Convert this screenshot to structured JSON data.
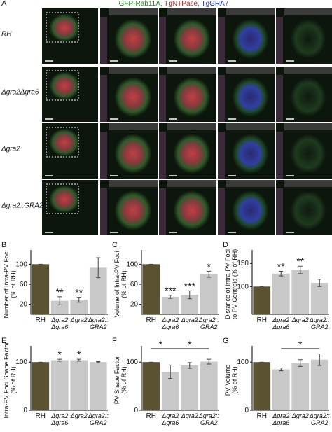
{
  "header": {
    "panel": "A",
    "legend": [
      {
        "text": "GFP-Rab11A,",
        "color": "#1a8a1a"
      },
      {
        "text": " TgNTPase,",
        "color": "#d02020"
      },
      {
        "text": " TgGRA7",
        "color": "#2030c0"
      }
    ]
  },
  "rows": [
    "RH",
    "Δgra2Δgra6",
    "Δgra2",
    "Δgra2::GRA2"
  ],
  "chart_data": [
    {
      "type": "bar",
      "panel": "B",
      "ylabel": "Number of Intra-PV Foci\n(% of RH)",
      "categories": [
        "RH",
        "Δgra2\nΔgra6",
        "Δgra2",
        "Δgra2::\nGRA2"
      ],
      "values": [
        100,
        27,
        29,
        93
      ],
      "errors": [
        0,
        8,
        5,
        20
      ],
      "colors": [
        "#5a5230",
        "#c8c8c8",
        "#c8c8c8",
        "#c8c8c8"
      ],
      "sig": [
        null,
        "**",
        "**",
        null
      ],
      "ylim": [
        0,
        120
      ],
      "yticks": [
        20,
        60,
        100
      ]
    },
    {
      "type": "bar",
      "panel": "C",
      "ylabel": "Volume of Intra-PV Foci\n(% of RH)",
      "categories": [
        "RH",
        "Δgra2\nΔgra6",
        "Δgra2",
        "Δgra2::\nGRA2"
      ],
      "values": [
        100,
        35,
        39,
        80
      ],
      "errors": [
        0,
        3,
        8,
        6
      ],
      "colors": [
        "#5a5230",
        "#c8c8c8",
        "#c8c8c8",
        "#c8c8c8"
      ],
      "sig": [
        null,
        "***",
        "***",
        "*"
      ],
      "ylim": [
        0,
        120
      ],
      "yticks": [
        20,
        60,
        100
      ]
    },
    {
      "type": "bar",
      "panel": "D",
      "ylabel": "Distance of Intra-PV Foci\nto PV Centroid (% of RH)",
      "categories": [
        "RH",
        "Δgra2\nΔgra6",
        "Δgra2",
        "Δgra2::\nGRA2"
      ],
      "values": [
        100,
        128,
        136,
        108
      ],
      "errors": [
        0,
        5,
        8,
        8
      ],
      "colors": [
        "#5a5230",
        "#c8c8c8",
        "#c8c8c8",
        "#c8c8c8"
      ],
      "sig": [
        null,
        "**",
        "**",
        null
      ],
      "ylim": [
        40,
        170
      ],
      "yticks": [
        100,
        150
      ]
    },
    {
      "type": "bar",
      "panel": "E",
      "ylabel": "Intra-PV Foci Shape Factor\n(% of RH)",
      "categories": [
        "RH",
        "Δgra2\nΔgra6",
        "Δgra2",
        "Δgra2::\nGRA2"
      ],
      "values": [
        100,
        104,
        104,
        100
      ],
      "errors": [
        0,
        2,
        2,
        1
      ],
      "colors": [
        "#5a5230",
        "#c8c8c8",
        "#c8c8c8",
        "#c8c8c8"
      ],
      "sig": [
        null,
        "*",
        "*",
        null
      ],
      "ylim": [
        0,
        125
      ],
      "yticks": [
        0,
        100
      ]
    },
    {
      "type": "bar",
      "panel": "F",
      "ylabel": "PV Shape Factor\n(% of RH)",
      "categories": [
        "RH",
        "Δgra2\nΔgra6",
        "Δgra2",
        "Δgra2::\nGRA2"
      ],
      "values": [
        100,
        80,
        93,
        101
      ],
      "errors": [
        0,
        14,
        6,
        5
      ],
      "colors": [
        "#5a5230",
        "#c8c8c8",
        "#c8c8c8",
        "#c8c8c8"
      ],
      "brackets": [
        {
          "from": 0,
          "to": 1,
          "label": "*"
        },
        {
          "from": 1,
          "to": 3,
          "label": "*"
        }
      ],
      "ylim": [
        0,
        125
      ],
      "yticks": [
        0,
        100
      ]
    },
    {
      "type": "bar",
      "panel": "G",
      "ylabel": "PV Volume\n(% of RH)",
      "categories": [
        "RH",
        "Δgra2\nΔgra6",
        "Δgra2",
        "Δgra2::\nGRA2"
      ],
      "values": [
        100,
        85,
        98,
        105
      ],
      "errors": [
        0,
        3,
        7,
        12
      ],
      "colors": [
        "#5a5230",
        "#c8c8c8",
        "#c8c8c8",
        "#c8c8c8"
      ],
      "brackets": [
        {
          "from": 1,
          "to": 3,
          "label": "*"
        }
      ],
      "ylim": [
        0,
        125
      ],
      "yticks": [
        0,
        100
      ]
    }
  ]
}
